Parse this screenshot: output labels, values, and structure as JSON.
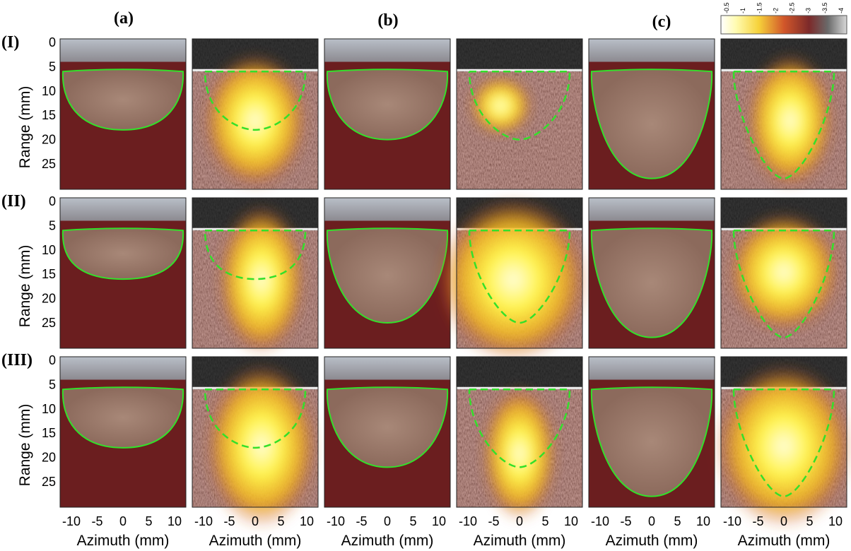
{
  "column_labels": [
    "(a)",
    "(b)",
    "(c)"
  ],
  "row_labels": [
    "(I)",
    "(II)",
    "(III)"
  ],
  "y_axis": {
    "label": "Range (mm)",
    "ticks": [
      "0",
      "5",
      "10",
      "15",
      "20",
      "25"
    ]
  },
  "x_axis": {
    "label": "Azimuth (mm)",
    "ticks": [
      "-10",
      "-5",
      "0",
      "5",
      "10"
    ]
  },
  "colorbar": {
    "ticks": [
      "-0.5",
      "-1",
      "-1.5",
      "-2",
      "-2.5",
      "-3",
      "-3.5",
      "-4"
    ]
  }
}
